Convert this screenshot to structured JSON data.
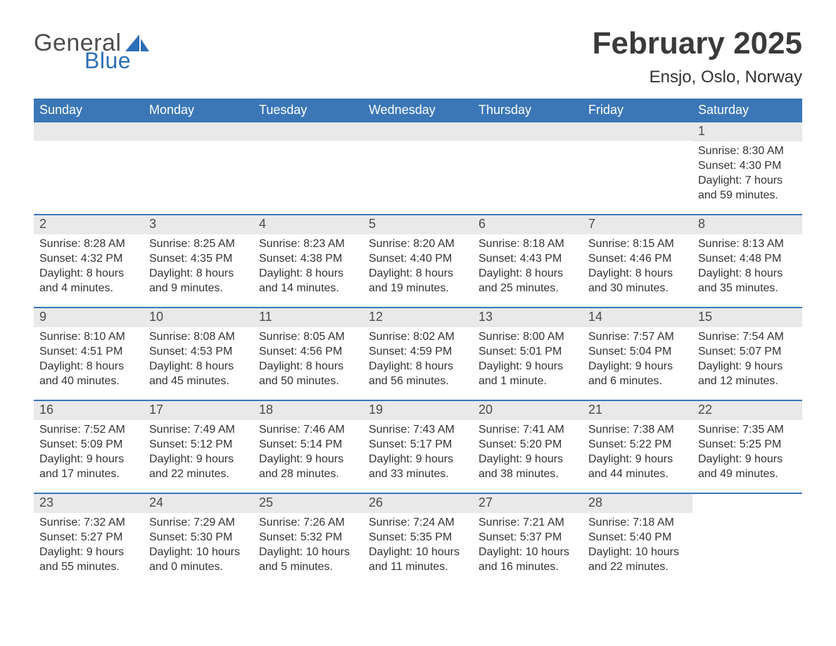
{
  "brand": {
    "general": "General",
    "blue": "Blue",
    "logo_sail_color": "#2d6fb6",
    "general_color": "#4d4d4d",
    "blue_color": "#2d6fb6"
  },
  "header": {
    "month_title": "February 2025",
    "location": "Ensjo, Oslo, Norway",
    "title_color": "#3a3a3a",
    "title_fontsize_pt": 33,
    "location_fontsize_pt": 18
  },
  "calendar": {
    "header_bg": "#3b77b7",
    "header_fg": "#ffffff",
    "daynum_bg": "#e9e9e9",
    "daynum_fg": "#4b4b4b",
    "row_border_color": "#3b77b7",
    "text_color": "#333333",
    "page_bg": "#ffffff",
    "font": "Segoe UI / Arial",
    "cell_fontsize_pt": 12,
    "columns": [
      "Sunday",
      "Monday",
      "Tuesday",
      "Wednesday",
      "Thursday",
      "Friday",
      "Saturday"
    ],
    "weeks": [
      [
        {
          "blank": true
        },
        {
          "blank": true
        },
        {
          "blank": true
        },
        {
          "blank": true
        },
        {
          "blank": true
        },
        {
          "blank": true
        },
        {
          "day": "1",
          "sunrise": "Sunrise: 8:30 AM",
          "sunset": "Sunset: 4:30 PM",
          "daylight1": "Daylight: 7 hours",
          "daylight2": "and 59 minutes."
        }
      ],
      [
        {
          "day": "2",
          "sunrise": "Sunrise: 8:28 AM",
          "sunset": "Sunset: 4:32 PM",
          "daylight1": "Daylight: 8 hours",
          "daylight2": "and 4 minutes."
        },
        {
          "day": "3",
          "sunrise": "Sunrise: 8:25 AM",
          "sunset": "Sunset: 4:35 PM",
          "daylight1": "Daylight: 8 hours",
          "daylight2": "and 9 minutes."
        },
        {
          "day": "4",
          "sunrise": "Sunrise: 8:23 AM",
          "sunset": "Sunset: 4:38 PM",
          "daylight1": "Daylight: 8 hours",
          "daylight2": "and 14 minutes."
        },
        {
          "day": "5",
          "sunrise": "Sunrise: 8:20 AM",
          "sunset": "Sunset: 4:40 PM",
          "daylight1": "Daylight: 8 hours",
          "daylight2": "and 19 minutes."
        },
        {
          "day": "6",
          "sunrise": "Sunrise: 8:18 AM",
          "sunset": "Sunset: 4:43 PM",
          "daylight1": "Daylight: 8 hours",
          "daylight2": "and 25 minutes."
        },
        {
          "day": "7",
          "sunrise": "Sunrise: 8:15 AM",
          "sunset": "Sunset: 4:46 PM",
          "daylight1": "Daylight: 8 hours",
          "daylight2": "and 30 minutes."
        },
        {
          "day": "8",
          "sunrise": "Sunrise: 8:13 AM",
          "sunset": "Sunset: 4:48 PM",
          "daylight1": "Daylight: 8 hours",
          "daylight2": "and 35 minutes."
        }
      ],
      [
        {
          "day": "9",
          "sunrise": "Sunrise: 8:10 AM",
          "sunset": "Sunset: 4:51 PM",
          "daylight1": "Daylight: 8 hours",
          "daylight2": "and 40 minutes."
        },
        {
          "day": "10",
          "sunrise": "Sunrise: 8:08 AM",
          "sunset": "Sunset: 4:53 PM",
          "daylight1": "Daylight: 8 hours",
          "daylight2": "and 45 minutes."
        },
        {
          "day": "11",
          "sunrise": "Sunrise: 8:05 AM",
          "sunset": "Sunset: 4:56 PM",
          "daylight1": "Daylight: 8 hours",
          "daylight2": "and 50 minutes."
        },
        {
          "day": "12",
          "sunrise": "Sunrise: 8:02 AM",
          "sunset": "Sunset: 4:59 PM",
          "daylight1": "Daylight: 8 hours",
          "daylight2": "and 56 minutes."
        },
        {
          "day": "13",
          "sunrise": "Sunrise: 8:00 AM",
          "sunset": "Sunset: 5:01 PM",
          "daylight1": "Daylight: 9 hours",
          "daylight2": "and 1 minute."
        },
        {
          "day": "14",
          "sunrise": "Sunrise: 7:57 AM",
          "sunset": "Sunset: 5:04 PM",
          "daylight1": "Daylight: 9 hours",
          "daylight2": "and 6 minutes."
        },
        {
          "day": "15",
          "sunrise": "Sunrise: 7:54 AM",
          "sunset": "Sunset: 5:07 PM",
          "daylight1": "Daylight: 9 hours",
          "daylight2": "and 12 minutes."
        }
      ],
      [
        {
          "day": "16",
          "sunrise": "Sunrise: 7:52 AM",
          "sunset": "Sunset: 5:09 PM",
          "daylight1": "Daylight: 9 hours",
          "daylight2": "and 17 minutes."
        },
        {
          "day": "17",
          "sunrise": "Sunrise: 7:49 AM",
          "sunset": "Sunset: 5:12 PM",
          "daylight1": "Daylight: 9 hours",
          "daylight2": "and 22 minutes."
        },
        {
          "day": "18",
          "sunrise": "Sunrise: 7:46 AM",
          "sunset": "Sunset: 5:14 PM",
          "daylight1": "Daylight: 9 hours",
          "daylight2": "and 28 minutes."
        },
        {
          "day": "19",
          "sunrise": "Sunrise: 7:43 AM",
          "sunset": "Sunset: 5:17 PM",
          "daylight1": "Daylight: 9 hours",
          "daylight2": "and 33 minutes."
        },
        {
          "day": "20",
          "sunrise": "Sunrise: 7:41 AM",
          "sunset": "Sunset: 5:20 PM",
          "daylight1": "Daylight: 9 hours",
          "daylight2": "and 38 minutes."
        },
        {
          "day": "21",
          "sunrise": "Sunrise: 7:38 AM",
          "sunset": "Sunset: 5:22 PM",
          "daylight1": "Daylight: 9 hours",
          "daylight2": "and 44 minutes."
        },
        {
          "day": "22",
          "sunrise": "Sunrise: 7:35 AM",
          "sunset": "Sunset: 5:25 PM",
          "daylight1": "Daylight: 9 hours",
          "daylight2": "and 49 minutes."
        }
      ],
      [
        {
          "day": "23",
          "sunrise": "Sunrise: 7:32 AM",
          "sunset": "Sunset: 5:27 PM",
          "daylight1": "Daylight: 9 hours",
          "daylight2": "and 55 minutes."
        },
        {
          "day": "24",
          "sunrise": "Sunrise: 7:29 AM",
          "sunset": "Sunset: 5:30 PM",
          "daylight1": "Daylight: 10 hours",
          "daylight2": "and 0 minutes."
        },
        {
          "day": "25",
          "sunrise": "Sunrise: 7:26 AM",
          "sunset": "Sunset: 5:32 PM",
          "daylight1": "Daylight: 10 hours",
          "daylight2": "and 5 minutes."
        },
        {
          "day": "26",
          "sunrise": "Sunrise: 7:24 AM",
          "sunset": "Sunset: 5:35 PM",
          "daylight1": "Daylight: 10 hours",
          "daylight2": "and 11 minutes."
        },
        {
          "day": "27",
          "sunrise": "Sunrise: 7:21 AM",
          "sunset": "Sunset: 5:37 PM",
          "daylight1": "Daylight: 10 hours",
          "daylight2": "and 16 minutes."
        },
        {
          "day": "28",
          "sunrise": "Sunrise: 7:18 AM",
          "sunset": "Sunset: 5:40 PM",
          "daylight1": "Daylight: 10 hours",
          "daylight2": "and 22 minutes."
        },
        {
          "blank": true,
          "trailing": true
        }
      ]
    ]
  }
}
